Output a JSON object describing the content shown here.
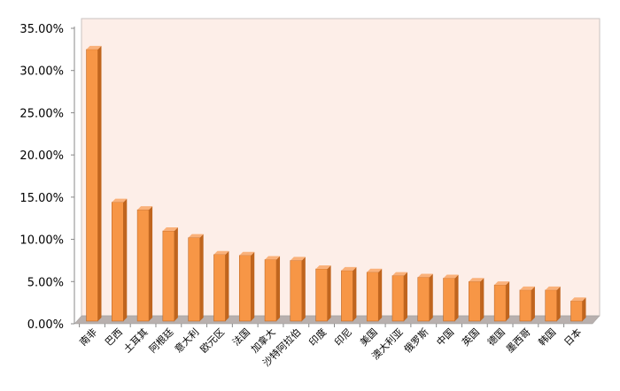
{
  "chart_data": {
    "type": "bar",
    "title": "",
    "xlabel": "",
    "ylabel": "",
    "ylim": [
      0,
      35
    ],
    "y_tick_labels": [
      "0.00%",
      "5.00%",
      "10.00%",
      "15.00%",
      "20.00%",
      "25.00%",
      "30.00%",
      "35.00%"
    ],
    "y_ticks": [
      0,
      5,
      10,
      15,
      20,
      25,
      30,
      35
    ],
    "grid": false,
    "style": "3d-column",
    "categories": [
      "南非",
      "巴西",
      "土耳其",
      "阿根廷",
      "意大利",
      "欧元区",
      "法国",
      "加拿大",
      "沙特阿拉伯",
      "印度",
      "印尼",
      "美国",
      "澳大利亚",
      "俄罗斯",
      "中国",
      "英国",
      "德国",
      "墨西哥",
      "韩国",
      "日本"
    ],
    "values": [
      32.5,
      14.4,
      13.5,
      11.0,
      10.2,
      8.2,
      8.1,
      7.6,
      7.5,
      6.5,
      6.3,
      6.1,
      5.7,
      5.5,
      5.4,
      5.0,
      4.6,
      4.0,
      4.0,
      2.7
    ],
    "colors": {
      "bar": "#F79646",
      "bar_side": "#C0651E",
      "bar_top": "#FAB17A",
      "plot_bg": "#FDEEE8",
      "floor": "#B8B0AE"
    }
  }
}
